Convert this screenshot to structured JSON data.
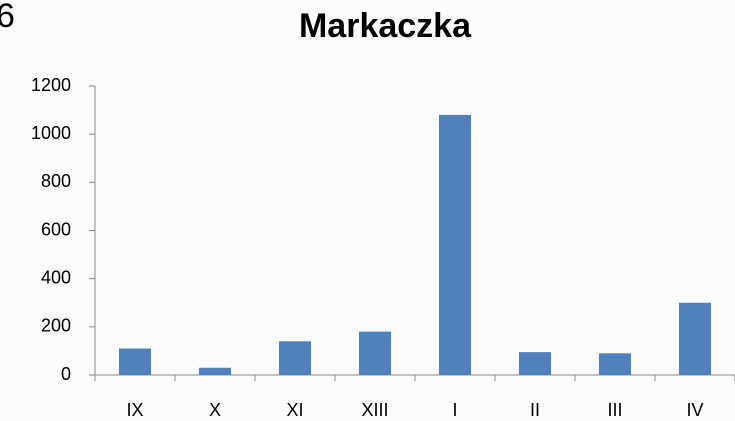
{
  "chart_data": {
    "type": "bar",
    "title": "Markaczka",
    "annotations": [
      "6"
    ],
    "categories": [
      "IX",
      "X",
      "XI",
      "XIII",
      "I",
      "II",
      "III",
      "IV"
    ],
    "values": [
      110,
      30,
      140,
      180,
      1080,
      95,
      90,
      300
    ],
    "color": "#4f81bd",
    "ylim": [
      0,
      1200
    ],
    "yticks": [
      0,
      200,
      400,
      600,
      800,
      1000,
      1200
    ],
    "grid": false
  }
}
